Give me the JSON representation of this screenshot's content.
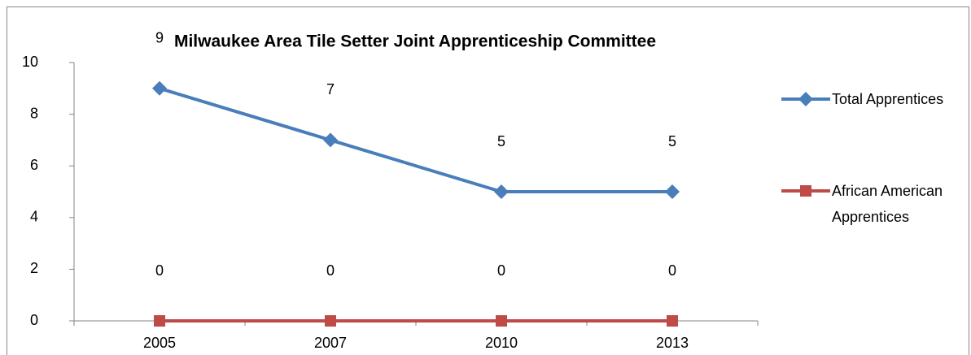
{
  "chart_data": {
    "type": "line",
    "title": "Milwaukee Area Tile Setter Joint Apprenticeship Committee",
    "categories": [
      "2005",
      "2007",
      "2010",
      "2013"
    ],
    "series": [
      {
        "name": "Total Apprentices",
        "color": "#4a7ebb",
        "marker": "diamond",
        "values": [
          9,
          7,
          5,
          5
        ]
      },
      {
        "name": "African American Apprentices",
        "color": "#be4b48",
        "marker": "square",
        "values": [
          0,
          0,
          0,
          0
        ]
      }
    ],
    "ylim": [
      0,
      10
    ],
    "yticks": [
      0,
      2,
      4,
      6,
      8,
      10
    ],
    "grid": false,
    "data_labels": true,
    "legend": "right"
  }
}
